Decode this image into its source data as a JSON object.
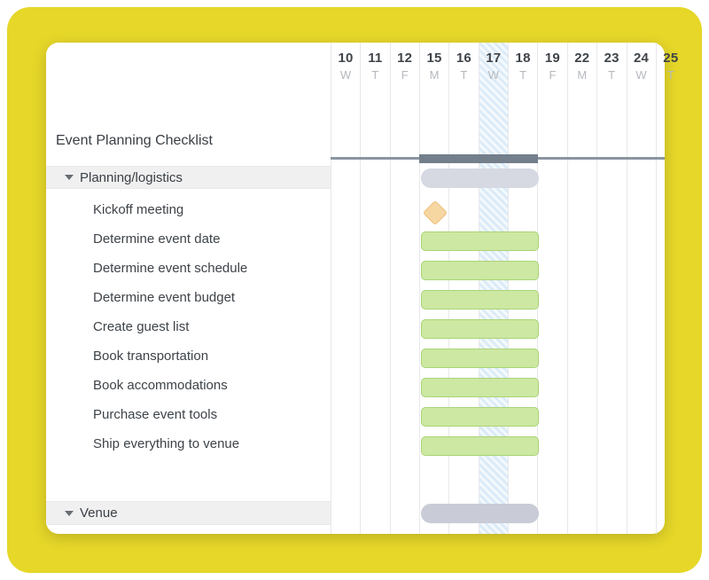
{
  "project": {
    "title": "Event Planning Checklist"
  },
  "timeline": {
    "columns": [
      {
        "date": "10",
        "day": "W",
        "today": false
      },
      {
        "date": "11",
        "day": "T",
        "today": false
      },
      {
        "date": "12",
        "day": "F",
        "today": false
      },
      {
        "date": "15",
        "day": "M",
        "today": false
      },
      {
        "date": "16",
        "day": "T",
        "today": false
      },
      {
        "date": "17",
        "day": "W",
        "today": true
      },
      {
        "date": "18",
        "day": "T",
        "today": false
      },
      {
        "date": "19",
        "day": "F",
        "today": false
      },
      {
        "date": "22",
        "day": "M",
        "today": false
      },
      {
        "date": "23",
        "day": "T",
        "today": false
      },
      {
        "date": "24",
        "day": "W",
        "today": false
      },
      {
        "date": "25",
        "day": "T",
        "today": false
      }
    ]
  },
  "chart_data": {
    "type": "gantt",
    "title": "Event Planning Checklist",
    "today_date": "17",
    "project_span": {
      "start_date": "15",
      "end_date": "18"
    },
    "groups": [
      {
        "name": "Planning/logistics",
        "collapse_icon": "triangle-down",
        "span": {
          "start_date": "15",
          "end_date": "18"
        },
        "tasks": [
          {
            "name": "Kickoff meeting",
            "type": "milestone",
            "date": "15"
          },
          {
            "name": "Determine event date",
            "type": "bar",
            "start_date": "15",
            "end_date": "18"
          },
          {
            "name": "Determine event schedule",
            "type": "bar",
            "start_date": "15",
            "end_date": "18"
          },
          {
            "name": "Determine event budget",
            "type": "bar",
            "start_date": "15",
            "end_date": "18"
          },
          {
            "name": "Create guest list",
            "type": "bar",
            "start_date": "15",
            "end_date": "18"
          },
          {
            "name": "Book transportation",
            "type": "bar",
            "start_date": "15",
            "end_date": "18"
          },
          {
            "name": "Book accommodations",
            "type": "bar",
            "start_date": "15",
            "end_date": "18"
          },
          {
            "name": "Purchase event tools",
            "type": "bar",
            "start_date": "15",
            "end_date": "18"
          },
          {
            "name": "Ship everything to venue",
            "type": "bar",
            "start_date": "15",
            "end_date": "18"
          }
        ]
      },
      {
        "name": "Venue",
        "collapse_icon": "triangle-down",
        "span": {
          "start_date": "15",
          "end_date": "18"
        },
        "tasks": []
      }
    ],
    "colors": {
      "task_bar_fill": "#cde8a2",
      "task_bar_border": "#a9d477",
      "milestone_fill": "#f6d6a1",
      "milestone_border": "#edbd79",
      "group_bar": "#d6d8e2",
      "venue_group_bar": "#c9ccd7",
      "project_bar": "#737f8b",
      "today_highlight": "#dcebf7",
      "page_background": "#e6d729"
    }
  }
}
